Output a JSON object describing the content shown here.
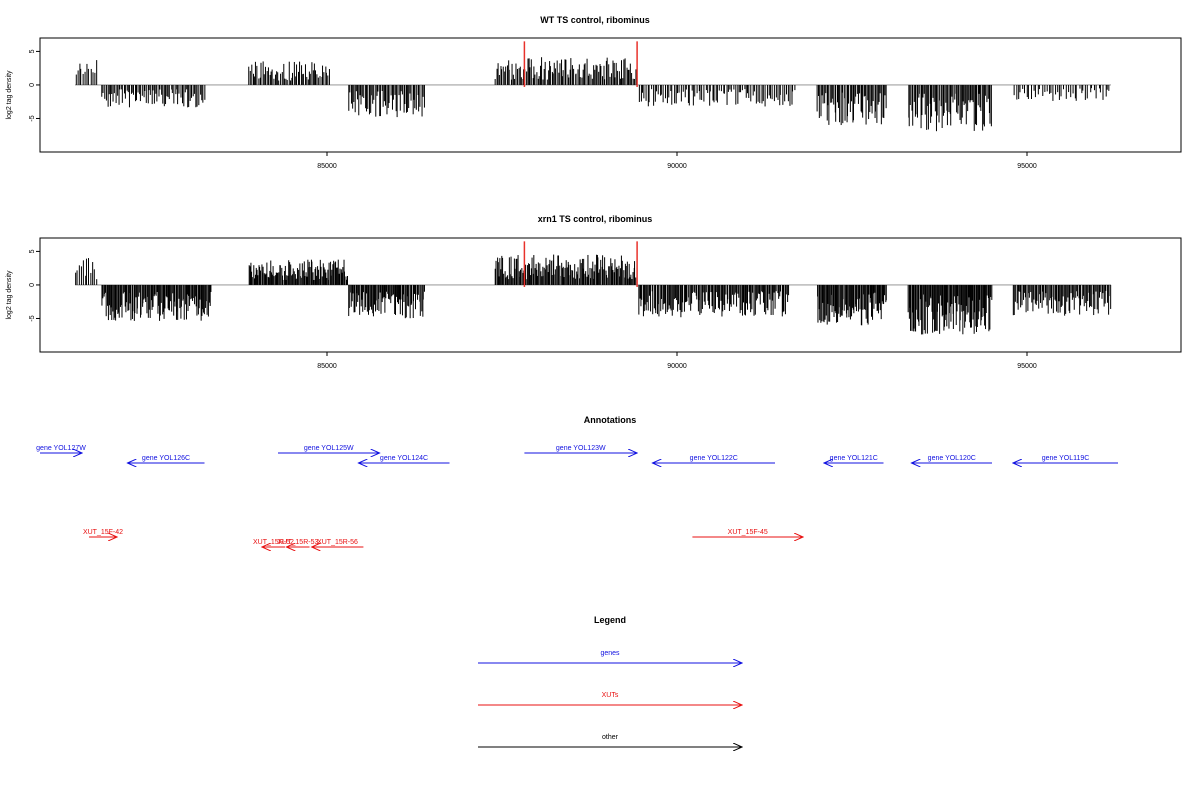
{
  "colors": {
    "bars": "#000000",
    "markers": "#e8322b",
    "genes": "#1010e0",
    "xuts": "#e81010",
    "other": "#000000",
    "baseline": "#888888"
  },
  "chart_data": [
    {
      "type": "bar",
      "title": "WT TS control, ribominus",
      "ylabel": "log2 tag density",
      "xlim": [
        80900,
        97200
      ],
      "ylim": [
        -10,
        7
      ],
      "xticks": [
        85000,
        90000,
        95000
      ],
      "yticks": [
        5,
        0,
        -5
      ],
      "markers_x": [
        87820,
        89430
      ],
      "segments": [
        {
          "x0": 81400,
          "x1": 81720,
          "sign": 1,
          "amp": 3.0,
          "bars": 12
        },
        {
          "x0": 81780,
          "x1": 83260,
          "sign": -1,
          "amp": 2.5,
          "bars": 75
        },
        {
          "x0": 83880,
          "x1": 85050,
          "sign": 1,
          "amp": 2.6,
          "bars": 60
        },
        {
          "x0": 85300,
          "x1": 86400,
          "sign": -1,
          "amp": 3.6,
          "bars": 60
        },
        {
          "x0": 87400,
          "x1": 89420,
          "sign": 1,
          "amp": 3.1,
          "bars": 110
        },
        {
          "x0": 89450,
          "x1": 91700,
          "sign": -1,
          "amp": 2.4,
          "bars": 90
        },
        {
          "x0": 92000,
          "x1": 93000,
          "sign": -1,
          "amp": 4.5,
          "bars": 60
        },
        {
          "x0": 93300,
          "x1": 94500,
          "sign": -1,
          "amp": 5.2,
          "bars": 75
        },
        {
          "x0": 94800,
          "x1": 96200,
          "sign": -1,
          "amp": 1.8,
          "bars": 45
        }
      ]
    },
    {
      "type": "bar",
      "title": "xrn1 TS control, ribominus",
      "ylabel": "log2 tag density",
      "xlim": [
        80900,
        97200
      ],
      "ylim": [
        -10,
        7
      ],
      "xticks": [
        85000,
        90000,
        95000
      ],
      "yticks": [
        5,
        0,
        -5
      ],
      "markers_x": [
        87820,
        89430
      ],
      "segments": [
        {
          "x0": 81400,
          "x1": 81720,
          "sign": 1,
          "amp": 3.0,
          "bars": 12
        },
        {
          "x0": 81780,
          "x1": 83350,
          "sign": -1,
          "amp": 4.0,
          "bars": 120
        },
        {
          "x0": 83880,
          "x1": 85300,
          "sign": 1,
          "amp": 2.8,
          "bars": 110
        },
        {
          "x0": 85300,
          "x1": 86400,
          "sign": -1,
          "amp": 3.8,
          "bars": 80
        },
        {
          "x0": 87400,
          "x1": 89420,
          "sign": 1,
          "amp": 3.4,
          "bars": 150
        },
        {
          "x0": 89450,
          "x1": 91600,
          "sign": -1,
          "amp": 3.6,
          "bars": 140
        },
        {
          "x0": 92000,
          "x1": 93000,
          "sign": -1,
          "amp": 4.5,
          "bars": 80
        },
        {
          "x0": 93300,
          "x1": 94500,
          "sign": -1,
          "amp": 5.5,
          "bars": 100
        },
        {
          "x0": 94800,
          "x1": 96200,
          "sign": -1,
          "amp": 3.4,
          "bars": 90
        }
      ]
    },
    {
      "type": "annotation-track",
      "title": "Annotations",
      "genes": [
        {
          "label": "gene YOL127W",
          "x0": 80900,
          "x1": 81500,
          "dir": "right",
          "row": 0
        },
        {
          "label": "gene YOL126C",
          "x0": 82150,
          "x1": 83250,
          "dir": "left",
          "row": 1
        },
        {
          "label": "gene YOL125W",
          "x0": 84300,
          "x1": 85750,
          "dir": "right",
          "row": 0
        },
        {
          "label": "gene YOL124C",
          "x0": 85450,
          "x1": 86750,
          "dir": "left",
          "row": 1
        },
        {
          "label": "gene YOL123W",
          "x0": 87820,
          "x1": 89430,
          "dir": "right",
          "row": 0
        },
        {
          "label": "gene YOL122C",
          "x0": 89650,
          "x1": 91400,
          "dir": "left",
          "row": 1
        },
        {
          "label": "gene YOL121C",
          "x0": 92100,
          "x1": 92950,
          "dir": "left",
          "row": 1
        },
        {
          "label": "gene YOL120C",
          "x0": 93350,
          "x1": 94500,
          "dir": "left",
          "row": 1
        },
        {
          "label": "gene YOL119C",
          "x0": 94800,
          "x1": 96300,
          "dir": "left",
          "row": 1
        }
      ],
      "xuts": [
        {
          "label": "XUT_15F-42",
          "x0": 81600,
          "x1": 82000,
          "dir": "right",
          "row": 0
        },
        {
          "label": "XUT_15R-52",
          "x0": 84070,
          "x1": 84400,
          "dir": "left",
          "row": 1
        },
        {
          "label": "XUT_15R-53",
          "x0": 84420,
          "x1": 84750,
          "dir": "left",
          "row": 1
        },
        {
          "label": "XUT_15R-56",
          "x0": 84780,
          "x1": 85520,
          "dir": "left",
          "row": 1
        },
        {
          "label": "XUT_15F-45",
          "x0": 90220,
          "x1": 91800,
          "dir": "right",
          "row": 0
        }
      ]
    }
  ],
  "legend": {
    "title": "Legend",
    "items": [
      {
        "label": "genes",
        "color_key": "genes"
      },
      {
        "label": "XUTs",
        "color_key": "xuts"
      },
      {
        "label": "other",
        "color_key": "other"
      }
    ]
  }
}
